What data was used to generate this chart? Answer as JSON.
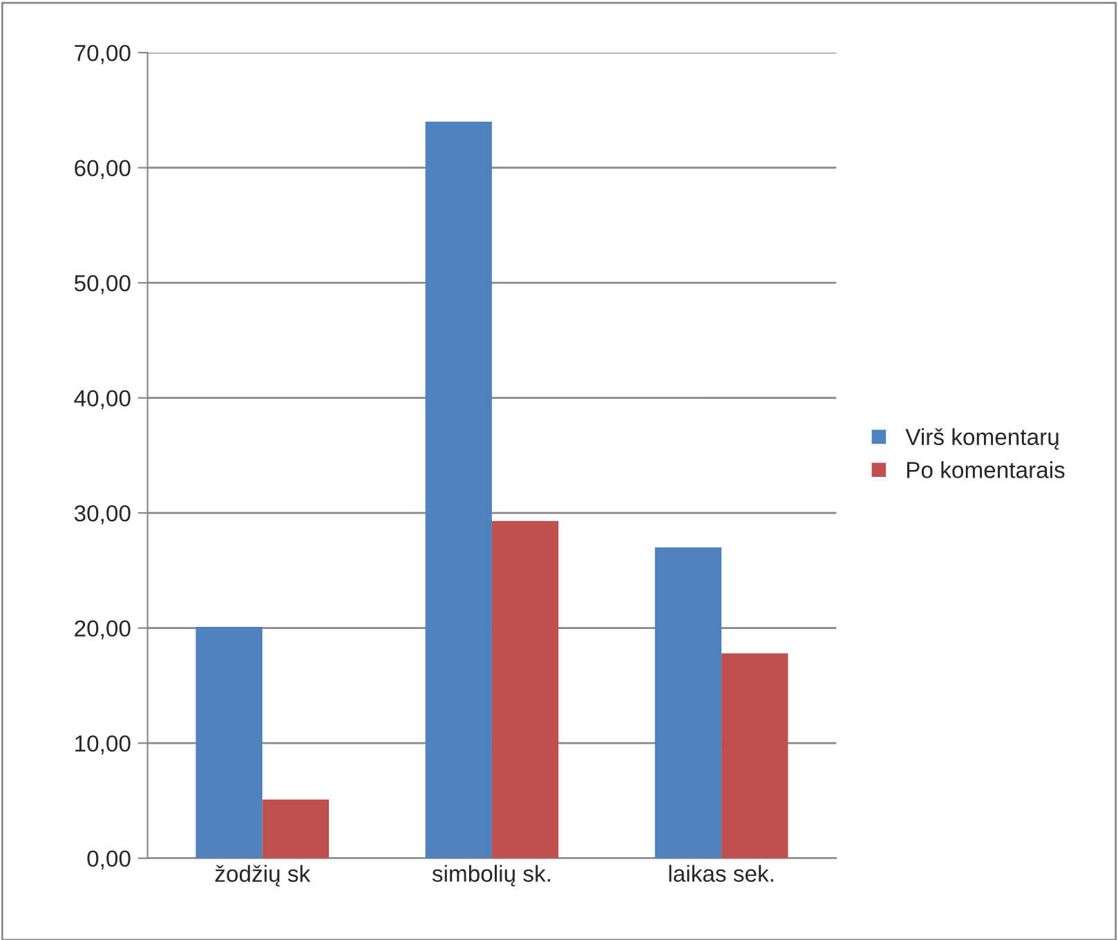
{
  "chart_data": {
    "type": "bar",
    "categories": [
      "žodžių sk",
      "simbolių sk.",
      "laikas sek."
    ],
    "series": [
      {
        "name": "Virš komentarų",
        "color": "#4f81bd",
        "values": [
          20.1,
          64.0,
          27.0
        ]
      },
      {
        "name": "Po komentarais",
        "color": "#c0504d",
        "values": [
          5.1,
          29.3,
          17.8
        ]
      }
    ],
    "ylim": [
      0,
      70
    ],
    "yticks": [
      {
        "value": 0,
        "label": "0,00"
      },
      {
        "value": 10,
        "label": "10,00"
      },
      {
        "value": 20,
        "label": "20,00"
      },
      {
        "value": 30,
        "label": "30,00"
      },
      {
        "value": 40,
        "label": "40,00"
      },
      {
        "value": 50,
        "label": "50,00"
      },
      {
        "value": 60,
        "label": "60,00"
      },
      {
        "value": 70,
        "label": "70,00"
      }
    ],
    "grid": "y",
    "legend": "right"
  }
}
